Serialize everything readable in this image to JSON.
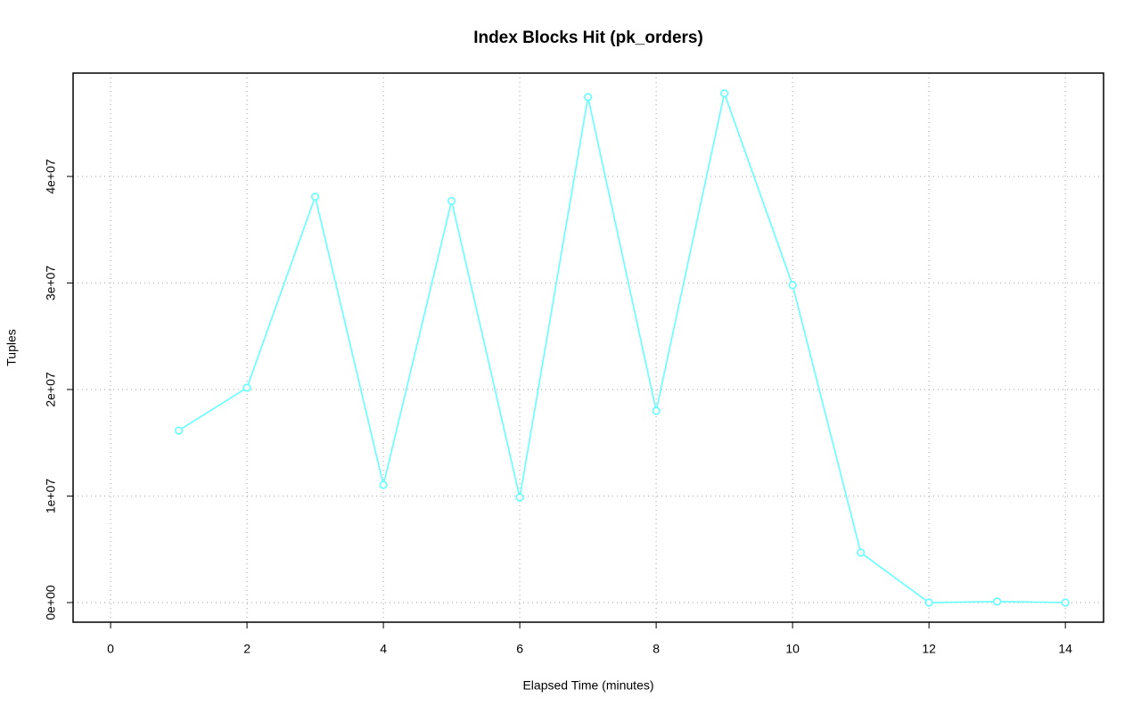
{
  "chart_data": {
    "type": "line",
    "title": "Index Blocks Hit (pk_orders)",
    "x_label": "Elapsed Time (minutes)",
    "y_label": "Tuples",
    "x": [
      1,
      2,
      3,
      4,
      5,
      6,
      7,
      8,
      9,
      10,
      11,
      12,
      13,
      14
    ],
    "series": [
      {
        "color": "#66ffff",
        "values": [
          16150000,
          20170000,
          38100000,
          11050000,
          37700000,
          9870000,
          47450000,
          18000000,
          47800000,
          29800000,
          4690000,
          0,
          100000,
          0
        ]
      }
    ],
    "xlim": [
      -0.55,
      14.56
    ],
    "ylim": [
      -1840000,
      49700000
    ],
    "xticks": [
      0,
      2,
      4,
      6,
      8,
      10,
      12,
      14
    ],
    "yticks": [
      {
        "value": 0,
        "label": "0e+00"
      },
      {
        "value": 10000000,
        "label": "1e+07"
      },
      {
        "value": 20000000,
        "label": "2e+07"
      },
      {
        "value": 30000000,
        "label": "3e+07"
      },
      {
        "value": 40000000,
        "label": "4e+07"
      }
    ],
    "grid": true
  }
}
